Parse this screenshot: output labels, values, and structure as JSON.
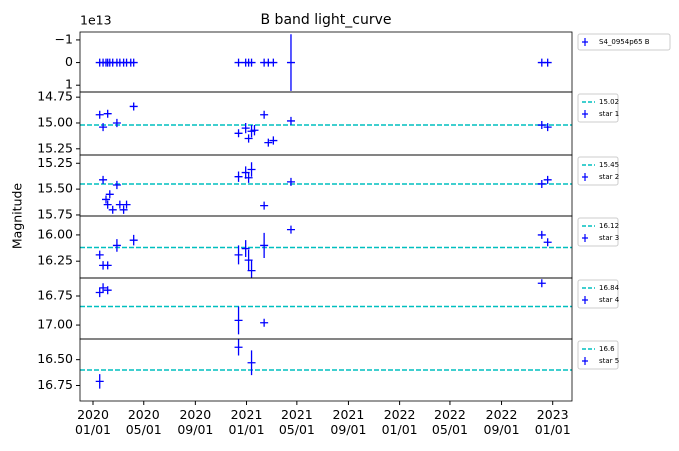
{
  "ylabel": "Magnitude",
  "chart_data": [
    {
      "type": "errorbar",
      "title": "B band light_curve",
      "offset_label": "1e13",
      "invert_y": true,
      "ylim": [
        -1.35,
        1.3
      ],
      "yticks": [
        {
          "value": -1,
          "label": "−1"
        },
        0,
        1
      ],
      "series": [
        {
          "name": "S4_0954p65 B",
          "color": "#0000ff",
          "x": [
            "2020-01-17",
            "2020-01-25",
            "2020-02-01",
            "2020-02-05",
            "2020-02-10",
            "2020-02-17",
            "2020-02-27",
            "2020-03-05",
            "2020-03-14",
            "2020-03-21",
            "2020-03-31",
            "2020-04-07",
            "2020-12-13",
            "2020-12-30",
            "2021-01-06",
            "2021-01-13",
            "2021-02-12",
            "2021-02-22",
            "2021-03-06",
            "2021-04-17",
            "2022-12-06",
            "2022-12-20"
          ],
          "values": [
            0,
            0,
            0,
            0,
            0,
            0,
            0,
            0,
            0,
            0,
            0,
            0,
            0,
            0,
            0,
            0,
            0,
            0,
            0,
            0,
            0,
            0
          ],
          "errors": [
            0.03,
            0.03,
            0.03,
            0.03,
            0.03,
            0.03,
            0.03,
            0.03,
            0.03,
            0.03,
            0.03,
            0.03,
            0.03,
            0.03,
            0.03,
            0.03,
            0.03,
            0.03,
            0.03,
            1.25,
            0.03,
            0.03
          ]
        }
      ]
    },
    {
      "type": "errorbar",
      "invert_y": true,
      "ylim": [
        14.7,
        15.31
      ],
      "yticks": [
        14.75,
        {
          "value": 15,
          "label": "15.00"
        },
        15.25
      ],
      "reference_line": {
        "value": 15.02,
        "color": "#00bfbf"
      },
      "series": [
        {
          "name": "star 1",
          "color": "#0000ff",
          "x": [
            "2020-01-17",
            "2020-01-25",
            "2020-02-05",
            "2020-02-27",
            "2020-04-07",
            "2020-12-13",
            "2020-12-30",
            "2021-01-06",
            "2021-01-13",
            "2021-01-20",
            "2021-02-12",
            "2021-02-22",
            "2021-03-06",
            "2021-04-17",
            "2022-12-06",
            "2022-12-20"
          ],
          "values": [
            14.92,
            15.04,
            14.91,
            15.0,
            14.84,
            15.1,
            15.05,
            15.15,
            15.08,
            15.07,
            14.92,
            15.19,
            15.17,
            14.98,
            15.02,
            15.04
          ],
          "errors": [
            0.02,
            0.02,
            0.02,
            0.04,
            0.02,
            0.03,
            0.05,
            0.04,
            0.06,
            0.05,
            0.03,
            0.03,
            0.04,
            0.02,
            0.02,
            0.02
          ]
        }
      ]
    },
    {
      "type": "errorbar",
      "invert_y": true,
      "ylim": [
        15.17,
        15.76
      ],
      "yticks": [
        15.25,
        {
          "value": 15.5,
          "label": "15.50"
        },
        15.75
      ],
      "reference_line": {
        "value": 15.45,
        "color": "#00bfbf"
      },
      "series": [
        {
          "name": "star 2",
          "color": "#0000ff",
          "x": [
            "2020-01-25",
            "2020-02-01",
            "2020-02-05",
            "2020-02-10",
            "2020-02-17",
            "2020-02-27",
            "2020-03-05",
            "2020-03-14",
            "2020-03-21",
            "2020-12-13",
            "2020-12-30",
            "2021-01-06",
            "2021-01-13",
            "2021-02-12",
            "2021-04-17",
            "2022-12-06",
            "2022-12-20"
          ],
          "values": [
            15.41,
            15.6,
            15.65,
            15.55,
            15.7,
            15.46,
            15.65,
            15.7,
            15.65,
            15.38,
            15.34,
            15.39,
            15.31,
            15.66,
            15.43,
            15.45,
            15.41
          ],
          "errors": [
            0.03,
            0.03,
            0.04,
            0.03,
            0.03,
            0.04,
            0.03,
            0.04,
            0.03,
            0.05,
            0.06,
            0.05,
            0.07,
            0.03,
            0.03,
            0.02,
            0.02
          ]
        }
      ]
    },
    {
      "type": "errorbar",
      "invert_y": true,
      "ylim": [
        15.82,
        16.41
      ],
      "yticks": [
        {
          "value": 16,
          "label": "16.00"
        },
        16.25
      ],
      "reference_line": {
        "value": 16.12,
        "color": "#00bfbf"
      },
      "series": [
        {
          "name": "star 3",
          "color": "#0000ff",
          "x": [
            "2020-01-17",
            "2020-01-25",
            "2020-02-05",
            "2020-02-27",
            "2020-04-07",
            "2020-12-13",
            "2020-12-30",
            "2021-01-06",
            "2021-01-13",
            "2021-02-12",
            "2021-04-17",
            "2022-12-06",
            "2022-12-20"
          ],
          "values": [
            16.19,
            16.29,
            16.29,
            16.1,
            16.05,
            16.19,
            16.13,
            16.24,
            16.34,
            16.1,
            15.95,
            16.0,
            16.07
          ],
          "errors": [
            0.04,
            0.04,
            0.02,
            0.06,
            0.05,
            0.09,
            0.08,
            0.1,
            0.1,
            0.12,
            0.03,
            0.02,
            0.02
          ]
        }
      ]
    },
    {
      "type": "errorbar",
      "invert_y": true,
      "ylim": [
        16.595,
        17.12
      ],
      "yticks": [
        16.75,
        {
          "value": 17,
          "label": "17.00"
        }
      ],
      "reference_line": {
        "value": 16.84,
        "color": "#00bfbf"
      },
      "series": [
        {
          "name": "star 4",
          "color": "#0000ff",
          "x": [
            "2020-01-17",
            "2020-01-25",
            "2020-02-05",
            "2020-12-13",
            "2021-02-12",
            "2022-12-06"
          ],
          "values": [
            16.72,
            16.68,
            16.7,
            16.96,
            16.98,
            16.64
          ],
          "errors": [
            0.04,
            0.04,
            0.02,
            0.12,
            0.02,
            0.02
          ]
        }
      ]
    },
    {
      "type": "errorbar",
      "invert_y": true,
      "ylim": [
        16.3,
        16.9
      ],
      "yticks": [
        {
          "value": 16.5,
          "label": "16.50"
        },
        16.75
      ],
      "reference_line": {
        "value": 16.6,
        "color": "#00bfbf"
      },
      "series": [
        {
          "name": "star 5",
          "color": "#0000ff",
          "x": [
            "2020-01-17",
            "2020-12-13",
            "2021-01-13"
          ],
          "values": [
            16.71,
            16.38,
            16.53
          ],
          "errors": [
            0.07,
            0.08,
            0.12
          ]
        }
      ],
      "xlim": [
        "2019-12-01",
        "2023-02-16"
      ],
      "xticks": [
        {
          "value": "2020-01-01",
          "label": "2020\n01/01"
        },
        {
          "value": "2020-05-01",
          "label": "2020\n05/01"
        },
        {
          "value": "2020-09-01",
          "label": "2020\n09/01"
        },
        {
          "value": "2021-01-01",
          "label": "2021\n01/01"
        },
        {
          "value": "2021-05-01",
          "label": "2021\n05/01"
        },
        {
          "value": "2021-09-01",
          "label": "2021\n09/01"
        },
        {
          "value": "2022-01-01",
          "label": "2022\n01/01"
        },
        {
          "value": "2022-05-01",
          "label": "2022\n05/01"
        },
        {
          "value": "2022-09-01",
          "label": "2022\n09/01"
        },
        {
          "value": "2023-01-01",
          "label": "2023\n01/01"
        }
      ]
    }
  ]
}
